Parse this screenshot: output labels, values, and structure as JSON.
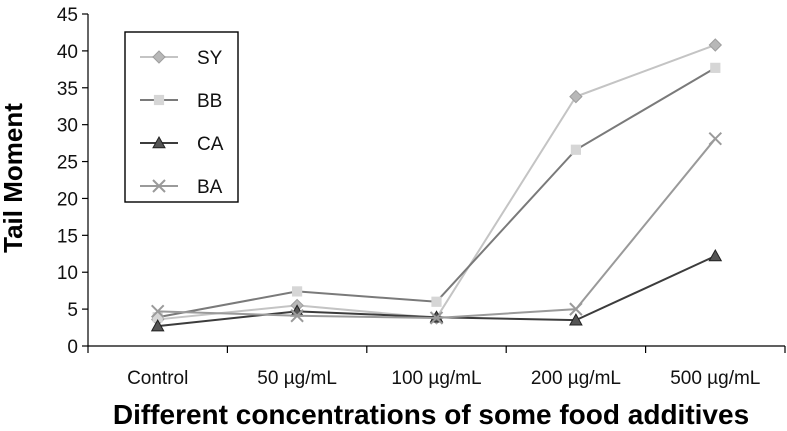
{
  "chart_data": {
    "type": "line",
    "xlabel": "Different concentrations of some food additives",
    "ylabel": "Tail Moment",
    "categories": [
      "Control",
      "50 µg/mL",
      "100 µg/mL",
      "200 µg/mL",
      "500 µg/mL"
    ],
    "ylim": [
      0,
      45
    ],
    "yticks": [
      0,
      5,
      10,
      15,
      20,
      25,
      30,
      35,
      40,
      45
    ],
    "grid": false,
    "legend_position": "top-left",
    "series": [
      {
        "name": "SY",
        "marker": "diamond",
        "line_color": "#c4c4c4",
        "marker_color": "#b8b8b8",
        "values": [
          3.6,
          5.5,
          3.8,
          33.8,
          40.8
        ]
      },
      {
        "name": "BB",
        "marker": "square",
        "line_color": "#7a7a7a",
        "marker_color": "#d6d6d6",
        "values": [
          3.9,
          7.4,
          6.0,
          26.6,
          37.7
        ]
      },
      {
        "name": "CA",
        "marker": "triangle",
        "line_color": "#3c3c3c",
        "marker_color": "#555555",
        "values": [
          2.7,
          4.7,
          3.9,
          3.5,
          12.2
        ]
      },
      {
        "name": "BA",
        "marker": "x",
        "line_color": "#9a9a9a",
        "marker_color": "#9a9a9a",
        "values": [
          4.7,
          4.1,
          3.8,
          5.0,
          28.1
        ]
      }
    ]
  }
}
